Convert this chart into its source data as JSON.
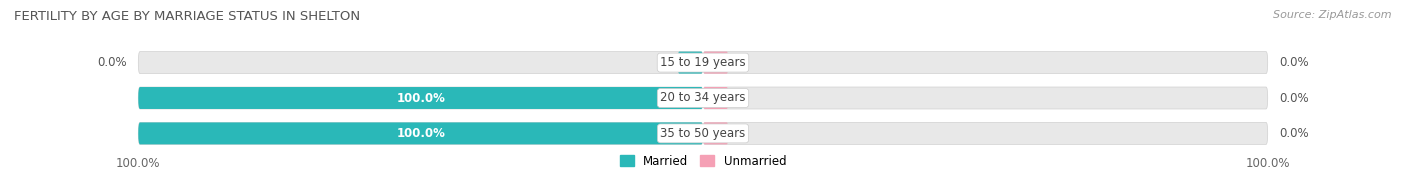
{
  "title": "FERTILITY BY AGE BY MARRIAGE STATUS IN SHELTON",
  "source": "Source: ZipAtlas.com",
  "categories": [
    "15 to 19 years",
    "20 to 34 years",
    "35 to 50 years"
  ],
  "married_values": [
    0.0,
    100.0,
    100.0
  ],
  "unmarried_values": [
    0.0,
    0.0,
    0.0
  ],
  "married_color": "#2ab8b8",
  "unmarried_color": "#f5a0b5",
  "bar_bg_color": "#e8e8e8",
  "bar_border_color": "#d0d0d0",
  "title_fontsize": 9.5,
  "source_fontsize": 8,
  "label_fontsize": 8.5,
  "tick_fontsize": 8.5,
  "legend_labels": [
    "Married",
    "Unmarried"
  ],
  "x_tick_label_left": "100.0%",
  "x_tick_label_right": "100.0%",
  "fig_bg_color": "#ffffff",
  "bar_bg_color2": "#f0f0f0"
}
